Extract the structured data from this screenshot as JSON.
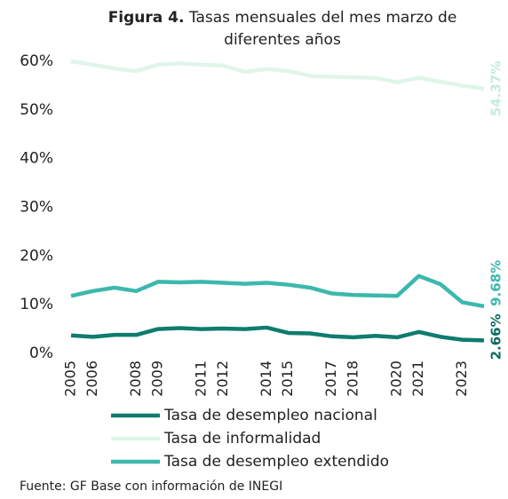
{
  "chart_data": {
    "type": "line",
    "title_number": "Figura 4.",
    "title": "Tasas mensuales del mes marzo de diferentes años",
    "source": "Fuente: GF Base con información de INEGI",
    "categories": [
      "2005",
      "2006",
      null,
      "2008",
      "2009",
      null,
      "2011",
      "2012",
      null,
      "2014",
      "2015",
      null,
      "2017",
      "2018",
      null,
      "2020",
      "2021",
      null,
      "2023",
      null
    ],
    "ylim": [
      0,
      60
    ],
    "yticks": [
      {
        "value": 0,
        "label": "0%"
      },
      {
        "value": 10,
        "label": "10%"
      },
      {
        "value": 20,
        "label": "20%"
      },
      {
        "value": 30,
        "label": "30%"
      },
      {
        "value": 40,
        "label": "40%"
      },
      {
        "value": 50,
        "label": "50%"
      },
      {
        "value": 60,
        "label": "60%"
      }
    ],
    "grid": false,
    "legend": "bottom",
    "series": [
      {
        "name": "Tasa de desempleo nacional",
        "color": "#0e7c6f",
        "label_color": "#0b6b60",
        "values": [
          3.7,
          3.4,
          3.8,
          3.8,
          5.0,
          5.2,
          5.0,
          5.1,
          5.0,
          5.3,
          4.2,
          4.1,
          3.5,
          3.3,
          3.6,
          3.3,
          4.4,
          3.4,
          2.8,
          2.66
        ],
        "value_labels": [
          null,
          null,
          null,
          null,
          null,
          null,
          null,
          null,
          null,
          null,
          null,
          null,
          null,
          null,
          null,
          null,
          null,
          null,
          null,
          "2.66%"
        ]
      },
      {
        "name": "Tasa de informalidad",
        "color": "#e0f5e9",
        "label_color": "#c5ecd8",
        "values": [
          60.0,
          59.3,
          58.5,
          58.0,
          59.3,
          59.6,
          59.3,
          59.1,
          57.8,
          58.4,
          58.0,
          57.0,
          56.8,
          56.7,
          56.6,
          55.7,
          56.6,
          55.8,
          55.0,
          54.37
        ],
        "value_labels": [
          null,
          null,
          null,
          null,
          null,
          null,
          null,
          null,
          null,
          null,
          null,
          null,
          null,
          null,
          null,
          null,
          null,
          null,
          null,
          "54.37%"
        ]
      },
      {
        "name": "Tasa de desempleo extendido",
        "color": "#3cb8ad",
        "label_color": "#3cb8ad",
        "values": [
          11.8,
          12.8,
          13.5,
          12.8,
          14.7,
          14.6,
          14.7,
          14.5,
          14.3,
          14.5,
          14.1,
          13.5,
          12.3,
          12.0,
          11.9,
          11.8,
          15.9,
          14.2,
          10.5,
          9.68
        ],
        "value_labels": [
          null,
          null,
          null,
          null,
          null,
          null,
          null,
          null,
          null,
          null,
          null,
          null,
          null,
          null,
          null,
          null,
          null,
          null,
          null,
          "9.68%"
        ]
      }
    ]
  }
}
